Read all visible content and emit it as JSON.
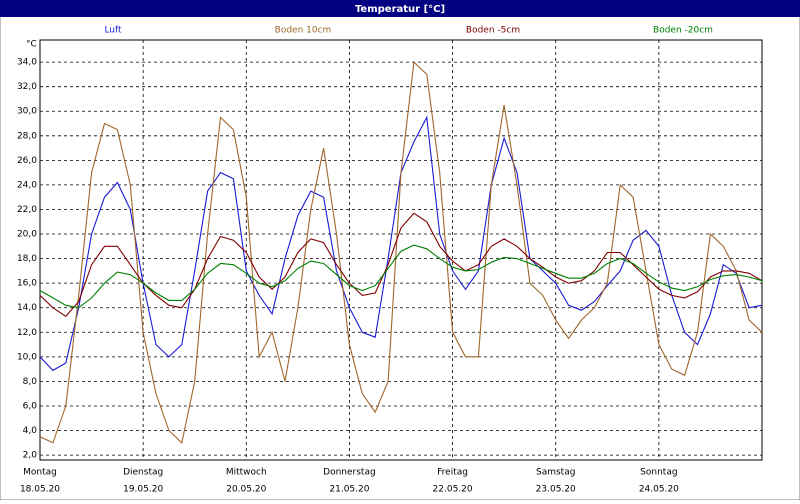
{
  "chart_data": {
    "type": "line",
    "title": "Temperatur [°C]",
    "y_unit": "°C",
    "x": [
      0,
      3,
      6,
      9,
      12,
      15,
      18,
      21,
      24,
      27,
      30,
      33,
      36,
      39,
      42,
      45,
      48,
      51,
      54,
      57,
      60,
      63,
      66,
      69,
      72,
      75,
      78,
      81,
      84,
      87,
      90,
      93,
      96,
      99,
      102,
      105,
      108,
      111,
      114,
      117,
      120,
      123,
      126,
      129,
      132,
      135,
      138,
      141,
      144,
      147,
      150,
      153,
      156,
      159,
      162,
      165,
      168
    ],
    "xlim": [
      0,
      168
    ],
    "xticks": [
      {
        "value": 0,
        "label": "Montag"
      },
      {
        "value": 24,
        "label": "Dienstag"
      },
      {
        "value": 48,
        "label": "Mittwoch"
      },
      {
        "value": 72,
        "label": "Donnerstag"
      },
      {
        "value": 96,
        "label": "Freitag"
      },
      {
        "value": 120,
        "label": "Samstag"
      },
      {
        "value": 144,
        "label": "Sonntag"
      }
    ],
    "xtick_dates": [
      "18.05.20",
      "19.05.20",
      "20.05.20",
      "21.05.20",
      "22.05.20",
      "23.05.20",
      "24.05.20"
    ],
    "ylim": [
      1.6,
      35.8
    ],
    "yticks": [
      {
        "value": 2,
        "label": "2,0"
      },
      {
        "value": 4,
        "label": "4,0"
      },
      {
        "value": 6,
        "label": "6,0"
      },
      {
        "value": 8,
        "label": "8,0"
      },
      {
        "value": 10,
        "label": "10,0"
      },
      {
        "value": 12,
        "label": "12,0"
      },
      {
        "value": 14,
        "label": "14,0"
      },
      {
        "value": 16,
        "label": "16,0"
      },
      {
        "value": 18,
        "label": "18,0"
      },
      {
        "value": 20,
        "label": "20,0"
      },
      {
        "value": 22,
        "label": "22,0"
      },
      {
        "value": 24,
        "label": "24,0"
      },
      {
        "value": 26,
        "label": "26,0"
      },
      {
        "value": 28,
        "label": "28,0"
      },
      {
        "value": 30,
        "label": "30,0"
      },
      {
        "value": 32,
        "label": "32,0"
      },
      {
        "value": 34,
        "label": "34,0"
      }
    ],
    "grid": true,
    "series": [
      {
        "name": "Luft",
        "color": "#1a1ad6",
        "values": [
          10.0,
          8.9,
          9.5,
          14,
          20,
          23,
          24.2,
          22,
          16,
          11,
          10,
          11,
          17,
          23.5,
          25,
          24.5,
          17,
          15,
          13.5,
          18,
          21.5,
          23.5,
          23,
          17,
          14,
          12,
          11.6,
          18,
          25,
          27.5,
          29.5,
          20,
          17,
          15.5,
          17,
          24,
          27.8,
          25,
          18,
          17,
          16,
          14.2,
          13.8,
          14.5,
          15.8,
          17,
          19.5,
          20.3,
          19,
          15,
          12,
          11,
          13.5,
          17.5,
          16.8,
          14,
          14.2
        ]
      },
      {
        "name": "Boden 10cm",
        "color": "#a0662a",
        "values": [
          3.5,
          3.0,
          6,
          15,
          25,
          29,
          28.5,
          24,
          12,
          7,
          4,
          3,
          8,
          20,
          29.5,
          28.5,
          23,
          10,
          12,
          8,
          14,
          22,
          27,
          20,
          11,
          7,
          5.5,
          8,
          25,
          34,
          33,
          25,
          12,
          10,
          10,
          24,
          30.5,
          24,
          16,
          15,
          13,
          11.5,
          13,
          14,
          16,
          24,
          23,
          17,
          11,
          9,
          8.5,
          12,
          20,
          19,
          17,
          13,
          12
        ]
      },
      {
        "name": "Boden -5cm",
        "color": "#800000",
        "values": [
          15,
          14,
          13.3,
          14.5,
          17.5,
          19,
          19,
          17.5,
          16,
          15,
          14.2,
          14,
          15.5,
          18,
          19.8,
          19.5,
          18.5,
          16.5,
          15.5,
          16.5,
          18.5,
          19.6,
          19.3,
          17.5,
          16,
          15,
          15.2,
          17.5,
          20.5,
          21.7,
          21,
          19,
          17.8,
          17,
          17.5,
          19,
          19.6,
          19,
          18,
          17.3,
          16.5,
          16,
          16.2,
          17,
          18.5,
          18.5,
          17.5,
          16.5,
          15.5,
          15,
          14.8,
          15.3,
          16.5,
          17,
          17,
          16.8,
          16.2
        ]
      },
      {
        "name": "Boden -20cm",
        "color": "#008000",
        "values": [
          15.4,
          14.8,
          14.2,
          14,
          14.8,
          16,
          16.9,
          16.7,
          16,
          15.2,
          14.6,
          14.6,
          15.5,
          16.8,
          17.6,
          17.5,
          16.8,
          16,
          15.7,
          16.2,
          17.2,
          17.8,
          17.6,
          16.7,
          15.8,
          15.4,
          15.8,
          17.2,
          18.6,
          19.1,
          18.8,
          18,
          17.3,
          17,
          17.1,
          17.7,
          18.1,
          18,
          17.6,
          17.2,
          16.8,
          16.4,
          16.4,
          16.8,
          17.6,
          18,
          17.6,
          16.8,
          16.1,
          15.6,
          15.4,
          15.7,
          16.3,
          16.6,
          16.7,
          16.5,
          16.2
        ]
      }
    ]
  }
}
